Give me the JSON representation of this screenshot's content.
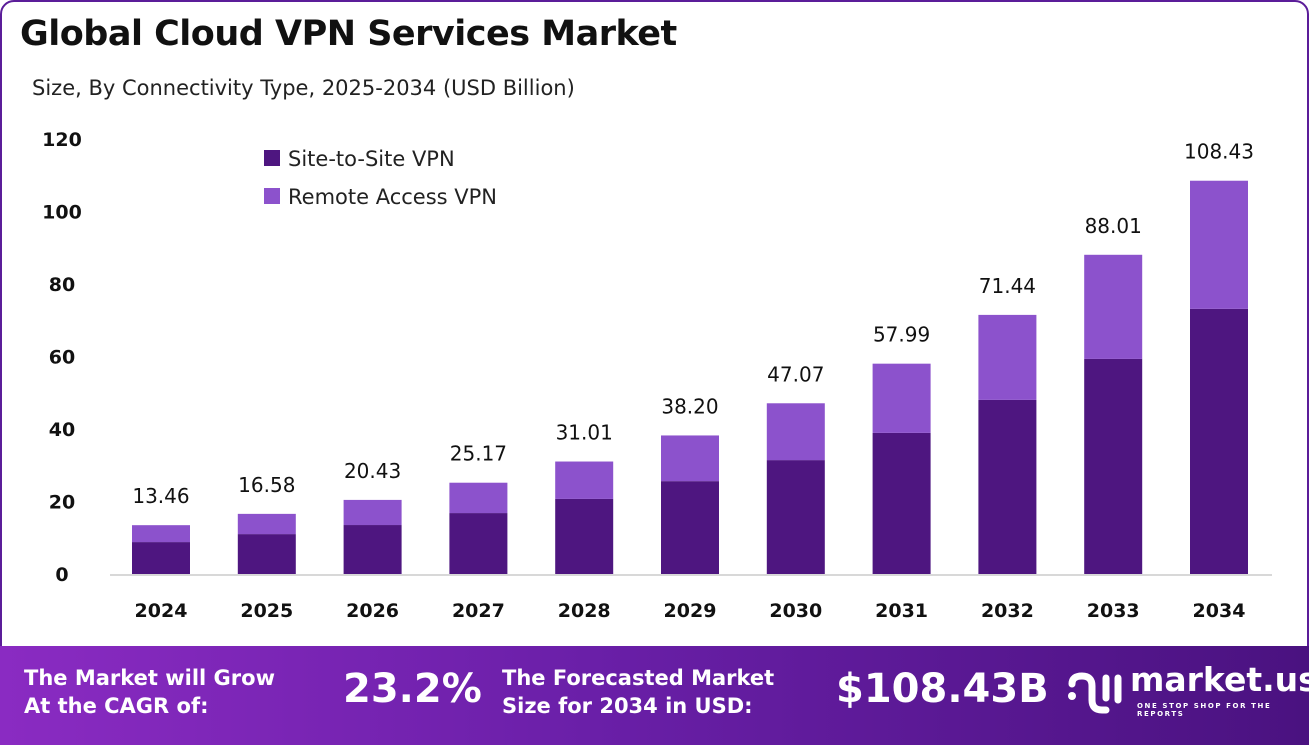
{
  "title": "Global Cloud VPN Services Market",
  "subtitle": "Size, By Connectivity Type, 2025-2034 (USD Billion)",
  "colors": {
    "site_to_site": "#4e1680",
    "remote_access": "#8c52cc",
    "banner": "#6a1fa8"
  },
  "chart_data": {
    "type": "bar",
    "stacked": true,
    "categories": [
      "2024",
      "2025",
      "2026",
      "2027",
      "2028",
      "2029",
      "2030",
      "2031",
      "2032",
      "2033",
      "2034"
    ],
    "series": [
      {
        "name": "Site-to-Site VPN",
        "values": [
          8.8,
          11.0,
          13.5,
          16.8,
          20.7,
          25.6,
          31.4,
          38.9,
          48.0,
          59.3,
          73.1
        ]
      },
      {
        "name": "Remote Access VPN",
        "values": [
          4.66,
          5.58,
          6.93,
          8.37,
          10.31,
          12.6,
          15.67,
          19.09,
          23.44,
          28.71,
          35.33
        ]
      }
    ],
    "totals": [
      "13.46",
      "16.58",
      "20.43",
      "25.17",
      "31.01",
      "38.20",
      "47.07",
      "57.99",
      "71.44",
      "88.01",
      "108.43"
    ],
    "yticks": [
      0,
      20,
      40,
      60,
      80,
      100,
      120
    ],
    "ylim": [
      0,
      120
    ],
    "legend": "top-left",
    "grid": false
  },
  "banner": {
    "cagr_label_1": "The Market will Grow",
    "cagr_label_2": "At the CAGR of:",
    "cagr_value": "23.2%",
    "forecast_label_1": "The Forecasted Market",
    "forecast_label_2": "Size for 2034 in USD:",
    "forecast_value": "$108.43B",
    "logo": "market.us",
    "tagline": "ONE STOP SHOP FOR THE REPORTS"
  }
}
